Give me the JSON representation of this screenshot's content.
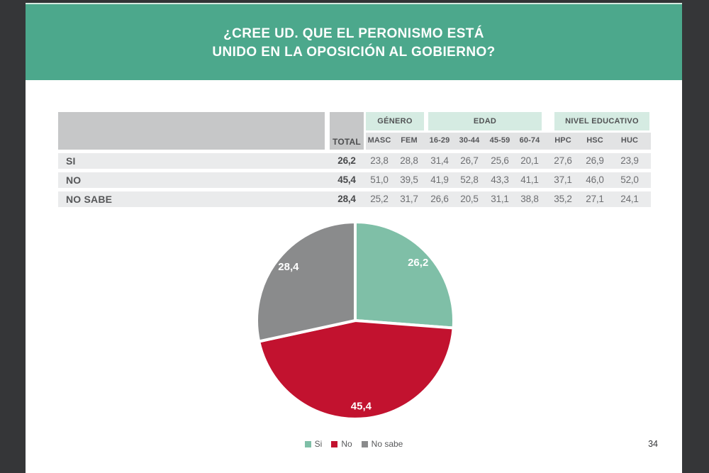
{
  "slide": {
    "title_line1": "¿CREE UD. QUE EL PERONISMO ESTÁ",
    "title_line2": "UNIDO EN LA OPOSICIÓN AL GOBIERNO?",
    "page_number": "34"
  },
  "colors": {
    "banner_green": "#4CA88C",
    "frame_dark": "#353638",
    "group_header_teal": "#d5ebe2",
    "header_gray": "#c6c7c8",
    "band_gray": "#eaebec",
    "pie_teal": "#7FBFA7",
    "pie_red": "#C2122F",
    "pie_gray": "#8A8B8C"
  },
  "chart_data": [
    {
      "type": "pie",
      "title": "¿Cree Ud. que el peronismo está unido en la oposición al gobierno?",
      "labels": [
        "Si",
        "No",
        "No sabe"
      ],
      "values": [
        26.2,
        45.4,
        28.4
      ],
      "display_labels": [
        "26,2",
        "45,4",
        "28,4"
      ],
      "colors": [
        "#7FBFA7",
        "#C2122F",
        "#8A8B8C"
      ],
      "start_angle_deg": 0,
      "direction": "clockwise",
      "legend_position": "bottom"
    },
    {
      "type": "table",
      "total_header": "TOTAL",
      "groups": [
        {
          "label": "GÉNERO",
          "columns": [
            "MASC",
            "FEM"
          ]
        },
        {
          "label": "EDAD",
          "columns": [
            "16-29",
            "30-44",
            "45-59",
            "60-74"
          ]
        },
        {
          "label": "NIVEL EDUCATIVO",
          "columns": [
            "HPC",
            "HSC",
            "HUC"
          ]
        }
      ],
      "rows": [
        {
          "label": "SI",
          "total": "26,2",
          "values": [
            "23,8",
            "28,8",
            "31,4",
            "26,7",
            "25,6",
            "20,1",
            "27,6",
            "26,9",
            "23,9"
          ]
        },
        {
          "label": "NO",
          "total": "45,4",
          "values": [
            "51,0",
            "39,5",
            "41,9",
            "52,8",
            "43,3",
            "41,1",
            "37,1",
            "46,0",
            "52,0"
          ]
        },
        {
          "label": "NO SABE",
          "total": "28,4",
          "values": [
            "25,2",
            "31,7",
            "26,6",
            "20,5",
            "31,1",
            "38,8",
            "35,2",
            "27,1",
            "24,1"
          ]
        }
      ]
    }
  ],
  "legend": {
    "items": [
      {
        "label": "Si",
        "color": "#7FBFA7"
      },
      {
        "label": "No",
        "color": "#C2122F"
      },
      {
        "label": "No sabe",
        "color": "#8A8B8C"
      }
    ]
  }
}
